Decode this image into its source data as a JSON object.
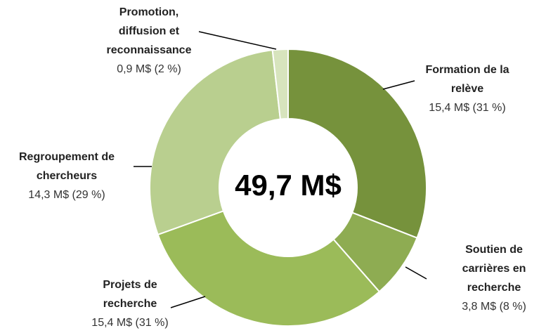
{
  "chart_data": {
    "type": "donut",
    "center_label": "49,7 M$",
    "categories": [
      "Formation de la relève",
      "Soutien de carrières en recherche",
      "Projets de recherche",
      "Regroupement de chercheurs",
      "Promotion, diffusion et reconnaissance"
    ],
    "values": [
      15.4,
      3.8,
      15.4,
      14.3,
      0.9
    ],
    "value_labels": [
      "15,4 M$ (31 %)",
      "3,8 M$ (8 %)",
      "15,4 M$ (31 %)",
      "14,3 M$ (29 %)",
      "0,9 M$ (2 %)"
    ],
    "colors": [
      "#76923c",
      "#8eac52",
      "#9bbb59",
      "#b9cf8f",
      "#d7e4bd"
    ]
  }
}
